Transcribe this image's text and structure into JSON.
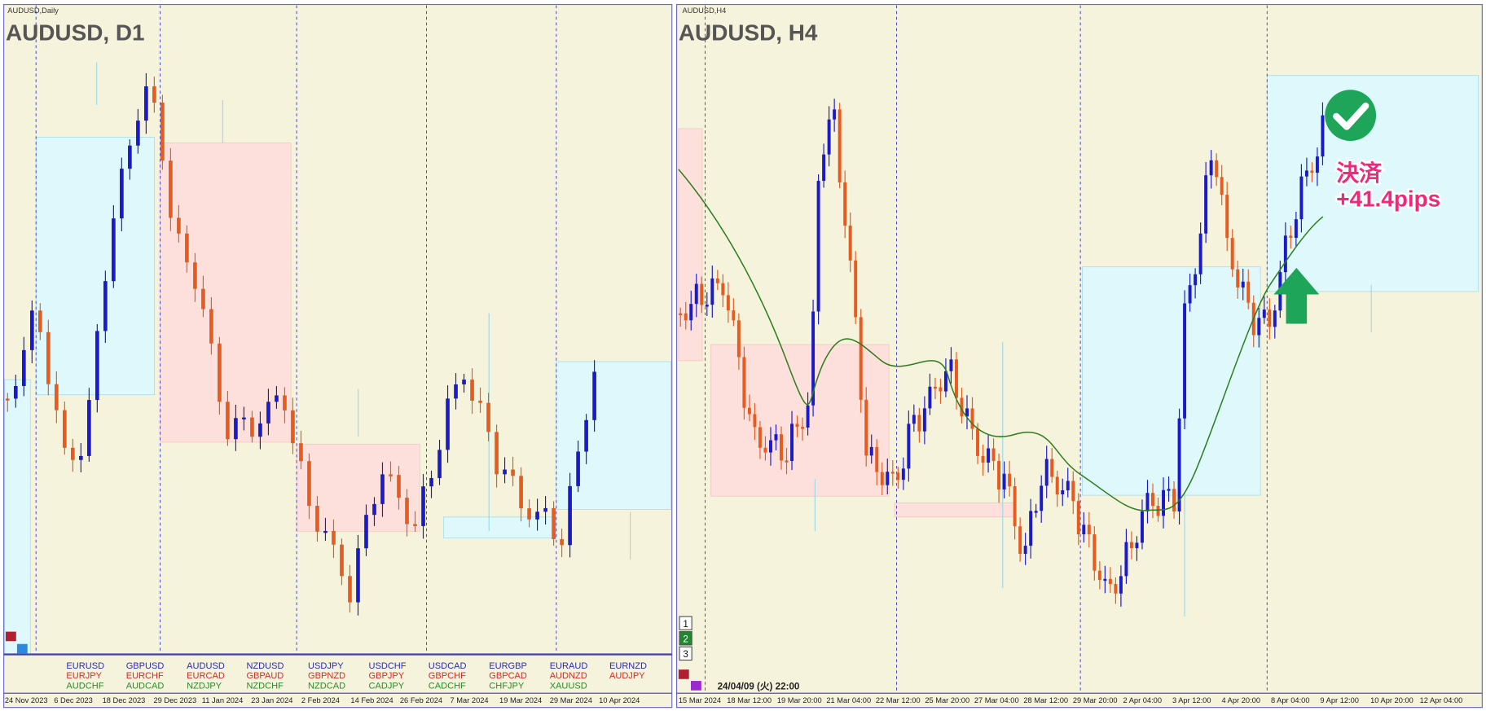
{
  "left_panel": {
    "label": "AUDUSD,Daily",
    "title": "AUDUSD, D1",
    "dates": [
      "24 Nov 2023",
      "6 Dec 2023",
      "18 Dec 2023",
      "29 Dec 2023",
      "11 Jan 2024",
      "23 Jan 2024",
      "2 Feb 2024",
      "14 Feb 2024",
      "26 Feb 2024",
      "7 Mar 2024",
      "19 Mar 2024",
      "29 Mar 2024",
      "10 Apr 2024"
    ],
    "symbols": [
      [
        "EURUSD",
        "EURJPY",
        "AUDCHF"
      ],
      [
        "GBPUSD",
        "EURCHF",
        "AUDCAD"
      ],
      [
        "AUDUSD",
        "EURCAD",
        "NZDJPY"
      ],
      [
        "NZDUSD",
        "GBPAUD",
        "NZDCHF"
      ],
      [
        "USDJPY",
        "GBPNZD",
        "NZDCAD"
      ],
      [
        "USDCHF",
        "GBPJPY",
        "CADJPY"
      ],
      [
        "USDCAD",
        "GBPCHF",
        "CADCHF"
      ],
      [
        "EURGBP",
        "GBPCAD",
        "CHFJPY"
      ],
      [
        "EURAUD",
        "AUDNZD",
        "XAUUSD"
      ],
      [
        "EURNZD",
        "AUDJPY"
      ]
    ]
  },
  "right_panel": {
    "label": "AUDUSD,H4",
    "title": "AUDUSD, H4",
    "tabs": [
      "1",
      "2",
      "3"
    ],
    "cursor_time": "24/04/09 (火) 22:00",
    "dates": [
      "15 Mar 2024",
      "18 Mar 12:00",
      "19 Mar 20:00",
      "21 Mar 04:00",
      "22 Mar 12:00",
      "25 Mar 20:00",
      "27 Mar 04:00",
      "28 Mar 12:00",
      "29 Mar 20:00",
      "2 Apr 04:00",
      "3 Apr 12:00",
      "4 Apr 20:00",
      "8 Apr 04:00",
      "9 Apr 12:00",
      "10 Apr 20:00",
      "12 Apr 04:00"
    ],
    "annotation": [
      "決済",
      "+41.4pips"
    ]
  }
}
